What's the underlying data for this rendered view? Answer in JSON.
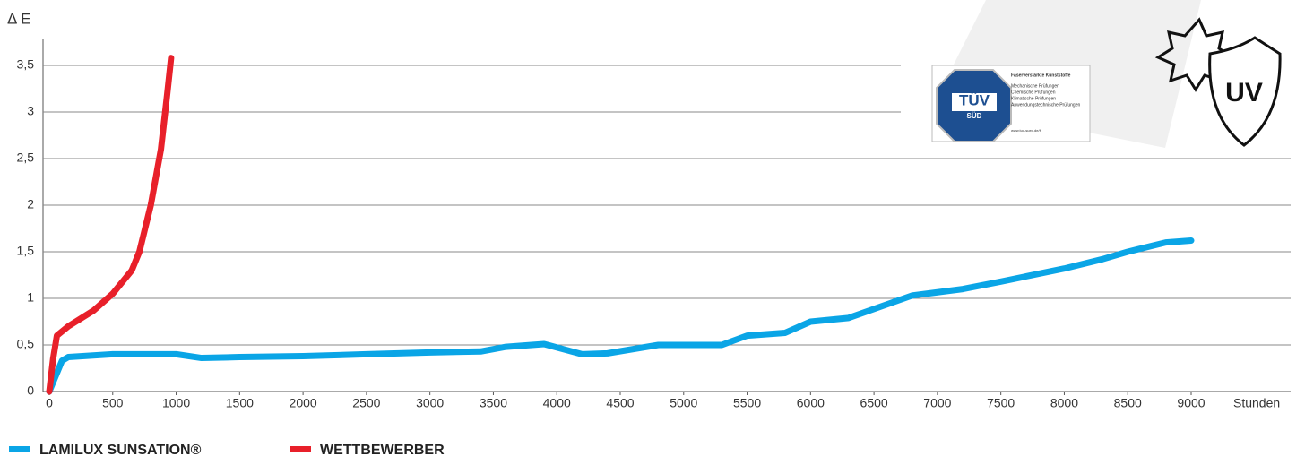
{
  "chart_data": {
    "type": "line",
    "y_label": "Δ E",
    "x_label": "Stunden",
    "xlim": [
      0,
      9000
    ],
    "xticks": [
      0,
      500,
      1000,
      1500,
      2000,
      2500,
      3000,
      3500,
      4000,
      4500,
      5000,
      5500,
      6000,
      6500,
      7000,
      7500,
      8000,
      8500,
      9000
    ],
    "ylim": [
      0,
      3.5
    ],
    "yticks": [
      0,
      {
        "value": 0.5,
        "label": "0,5"
      },
      1,
      {
        "value": 1.5,
        "label": "1,5"
      },
      2,
      {
        "value": 2.5,
        "label": "2,5"
      },
      3,
      {
        "value": 3.5,
        "label": "3,5"
      }
    ],
    "grid": true,
    "series": [
      {
        "name": "LAMILUX SUNSATION®",
        "color": "#0aa5e6",
        "x": [
          0,
          100,
          150,
          500,
          1000,
          1200,
          1500,
          2000,
          2500,
          3000,
          3400,
          3600,
          3900,
          4200,
          4400,
          4800,
          5300,
          5500,
          5800,
          6000,
          6300,
          6800,
          7200,
          7500,
          8000,
          8300,
          8500,
          8800,
          9000
        ],
        "values": [
          0,
          0.33,
          0.37,
          0.4,
          0.4,
          0.36,
          0.37,
          0.38,
          0.4,
          0.42,
          0.43,
          0.48,
          0.51,
          0.4,
          0.41,
          0.5,
          0.5,
          0.6,
          0.63,
          0.75,
          0.79,
          1.03,
          1.1,
          1.18,
          1.32,
          1.42,
          1.5,
          1.6,
          1.62
        ]
      },
      {
        "name": "WETTBEWERBER",
        "color": "#e8202a",
        "x": [
          0,
          30,
          60,
          150,
          350,
          500,
          650,
          710,
          800,
          880,
          930,
          960
        ],
        "values": [
          0,
          0.35,
          0.6,
          0.7,
          0.87,
          1.05,
          1.3,
          1.5,
          2.0,
          2.6,
          3.2,
          3.58
        ]
      }
    ]
  },
  "badges": {
    "tuv": "TÜV",
    "sud": "SÜD",
    "cert_title": "Faserverstärkte Kunststoffe",
    "cert_items": [
      "Mechanische Prüfungen",
      "Chemische Prüfungen",
      "Klimatische Prüfungen",
      "Anwendungstechnische Prüfungen"
    ],
    "url": "www.tuv-sued.de/ft",
    "uv": "UV"
  }
}
